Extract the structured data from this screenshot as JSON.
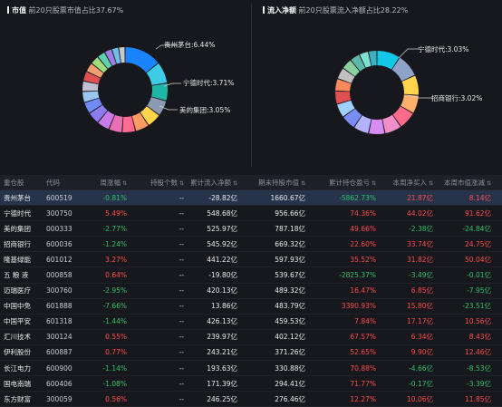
{
  "left_panel": {
    "tag": "市值",
    "subtitle": "前20只股票市值占比37.67%",
    "labels": [
      "贵州茅台:6.44%",
      "宁德时代:3.71%",
      "美的集团:3.05%"
    ]
  },
  "right_panel": {
    "tag": "流入净额",
    "subtitle": "前20只股票流入净额占比28.22%",
    "labels": [
      "宁德时代:3.03%",
      "招商银行:3.02%"
    ]
  },
  "table": {
    "headers": [
      "重仓股",
      "代码",
      "周涨幅",
      "持股个数",
      "累计流入净额",
      "期末持股市值",
      "累计持仓盈亏",
      "本周净买入",
      "本周市值涨减"
    ],
    "rows": [
      [
        "贵州茅台",
        "600519",
        "-0.81%",
        "--",
        "-28.82亿",
        "1660.67亿",
        "-5862.73%",
        "21.87亿",
        "8.14亿"
      ],
      [
        "宁德时代",
        "300750",
        "5.49%",
        "--",
        "548.68亿",
        "956.66亿",
        "74.36%",
        "44.02亿",
        "91.62亿"
      ],
      [
        "美的集团",
        "000333",
        "-2.77%",
        "--",
        "525.97亿",
        "787.18亿",
        "49.66%",
        "-2.38亿",
        "-24.84亿"
      ],
      [
        "招商银行",
        "600036",
        "-1.24%",
        "--",
        "545.92亿",
        "669.32亿",
        "22.60%",
        "33.74亿",
        "24.75亿"
      ],
      [
        "隆基绿能",
        "601012",
        "3.27%",
        "--",
        "441.22亿",
        "597.93亿",
        "35.52%",
        "31.82亿",
        "50.04亿"
      ],
      [
        "五 粮 液",
        "000858",
        "0.64%",
        "--",
        "-19.80亿",
        "539.67亿",
        "-2825.37%",
        "-3.49亿",
        "-0.01亿"
      ],
      [
        "迈瑞医疗",
        "300760",
        "-2.95%",
        "--",
        "420.13亿",
        "489.32亿",
        "16.47%",
        "6.85亿",
        "-7.95亿"
      ],
      [
        "中国中免",
        "601888",
        "-7.66%",
        "--",
        "13.86亿",
        "483.79亿",
        "3390.93%",
        "15.80亿",
        "-23.51亿"
      ],
      [
        "中国平安",
        "601318",
        "-1.44%",
        "--",
        "426.13亿",
        "459.53亿",
        "7.84%",
        "17.17亿",
        "10.56亿"
      ],
      [
        "汇川技术",
        "300124",
        "0.55%",
        "--",
        "239.97亿",
        "402.12亿",
        "67.57%",
        "6.34亿",
        "8.43亿"
      ],
      [
        "伊利股份",
        "600887",
        "0.77%",
        "--",
        "243.21亿",
        "371.26亿",
        "52.65%",
        "9.90亿",
        "12.46亿"
      ],
      [
        "长江电力",
        "600900",
        "-1.14%",
        "--",
        "193.63亿",
        "330.88亿",
        "70.88%",
        "-4.66亿",
        "-8.53亿"
      ],
      [
        "国电南瑞",
        "600406",
        "-1.08%",
        "--",
        "171.39亿",
        "294.41亿",
        "71.77%",
        "-0.17亿",
        "-3.39亿"
      ],
      [
        "东方财富",
        "300059",
        "0.56%",
        "--",
        "246.25亿",
        "276.46亿",
        "12.27%",
        "10.06亿",
        "11.85亿"
      ]
    ]
  },
  "colors": {
    "up": "#ff4b4b",
    "down": "#2ec26b",
    "selected_row": "#27334a"
  }
}
